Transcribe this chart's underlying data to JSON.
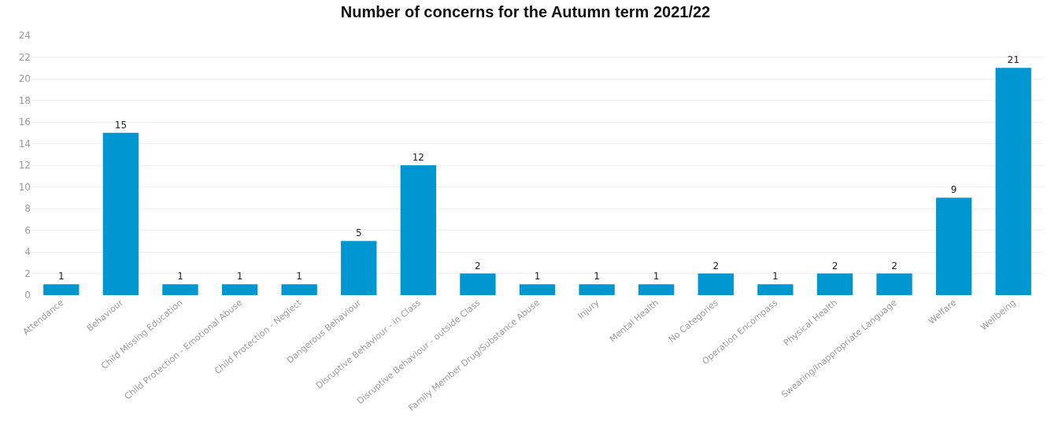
{
  "chart_data": {
    "type": "bar",
    "title": "Number of concerns for the Autumn term 2021/22",
    "categories": [
      "Attendance",
      "Behaviour",
      "Child Missing Education",
      "Child Protection - Emotional Abuse",
      "Child Protection - Neglect",
      "Dangerous Behaviour",
      "Disruptive Behaviour - in Class",
      "Disruptive Behaviour - outside Class",
      "Family Member Drug/Substance Abuse",
      "Injury",
      "Mental Health",
      "No Categories",
      "Operation Encompass",
      "Physical Health",
      "Swearing/Inappropriate Language",
      "Welfare",
      "Wellbeing"
    ],
    "values": [
      1,
      15,
      1,
      1,
      1,
      5,
      12,
      2,
      1,
      1,
      1,
      2,
      1,
      2,
      2,
      9,
      21
    ],
    "color": "#0096d1",
    "ylim": [
      0,
      24
    ],
    "yticks": [
      0,
      2,
      4,
      6,
      8,
      10,
      12,
      14,
      16,
      18,
      20,
      22,
      24
    ],
    "grid": "y",
    "data_labels": true
  }
}
